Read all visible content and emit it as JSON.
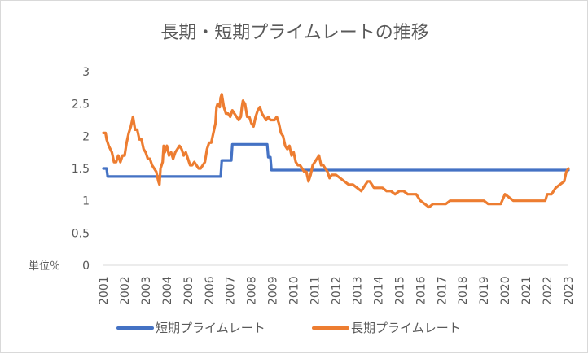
{
  "chart_data": {
    "type": "line",
    "title": "長期・短期プライムレートの推移",
    "ylabel": "単位％",
    "ylim": [
      0,
      3
    ],
    "y_ticks": [
      "0",
      "0.5",
      "1",
      "1.5",
      "2",
      "2.5",
      "3"
    ],
    "x_range": [
      2001,
      2023
    ],
    "x_ticks": [
      "2001",
      "2002",
      "2003",
      "2004",
      "2005",
      "2006",
      "2007",
      "2008",
      "2009",
      "2010",
      "2011",
      "2012",
      "2013",
      "2014",
      "2015",
      "2016",
      "2017",
      "2018",
      "2019",
      "2020",
      "2021",
      "2022",
      "2023"
    ],
    "grid": false,
    "legend_position": "bottom",
    "series": [
      {
        "name": "短期プライムレート",
        "color": "#4472C4",
        "points": [
          [
            2001.0,
            1.5
          ],
          [
            2001.15,
            1.5
          ],
          [
            2001.2,
            1.375
          ],
          [
            2006.55,
            1.375
          ],
          [
            2006.6,
            1.625
          ],
          [
            2007.05,
            1.625
          ],
          [
            2007.1,
            1.875
          ],
          [
            2008.75,
            1.875
          ],
          [
            2008.8,
            1.675
          ],
          [
            2008.9,
            1.675
          ],
          [
            2008.95,
            1.475
          ],
          [
            2023.0,
            1.475
          ]
        ]
      },
      {
        "name": "長期プライムレート",
        "color": "#ED7D31",
        "points": [
          [
            2001.0,
            2.05
          ],
          [
            2001.1,
            2.05
          ],
          [
            2001.15,
            1.95
          ],
          [
            2001.25,
            1.85
          ],
          [
            2001.4,
            1.75
          ],
          [
            2001.5,
            1.6
          ],
          [
            2001.6,
            1.6
          ],
          [
            2001.7,
            1.7
          ],
          [
            2001.8,
            1.6
          ],
          [
            2001.9,
            1.7
          ],
          [
            2002.0,
            1.7
          ],
          [
            2002.1,
            1.9
          ],
          [
            2002.2,
            2.05
          ],
          [
            2002.3,
            2.15
          ],
          [
            2002.4,
            2.3
          ],
          [
            2002.5,
            2.1
          ],
          [
            2002.6,
            2.1
          ],
          [
            2002.7,
            1.95
          ],
          [
            2002.8,
            1.95
          ],
          [
            2002.9,
            1.8
          ],
          [
            2003.0,
            1.75
          ],
          [
            2003.1,
            1.65
          ],
          [
            2003.2,
            1.65
          ],
          [
            2003.3,
            1.55
          ],
          [
            2003.4,
            1.5
          ],
          [
            2003.5,
            1.45
          ],
          [
            2003.6,
            1.3
          ],
          [
            2003.65,
            1.25
          ],
          [
            2003.7,
            1.5
          ],
          [
            2003.8,
            1.6
          ],
          [
            2003.85,
            1.85
          ],
          [
            2003.9,
            1.75
          ],
          [
            2004.0,
            1.85
          ],
          [
            2004.1,
            1.7
          ],
          [
            2004.2,
            1.75
          ],
          [
            2004.3,
            1.65
          ],
          [
            2004.4,
            1.75
          ],
          [
            2004.5,
            1.8
          ],
          [
            2004.6,
            1.85
          ],
          [
            2004.7,
            1.8
          ],
          [
            2004.8,
            1.7
          ],
          [
            2004.9,
            1.75
          ],
          [
            2005.0,
            1.65
          ],
          [
            2005.1,
            1.55
          ],
          [
            2005.2,
            1.55
          ],
          [
            2005.3,
            1.6
          ],
          [
            2005.4,
            1.55
          ],
          [
            2005.5,
            1.5
          ],
          [
            2005.6,
            1.5
          ],
          [
            2005.7,
            1.55
          ],
          [
            2005.8,
            1.6
          ],
          [
            2005.9,
            1.8
          ],
          [
            2006.0,
            1.9
          ],
          [
            2006.1,
            1.9
          ],
          [
            2006.2,
            2.05
          ],
          [
            2006.3,
            2.2
          ],
          [
            2006.35,
            2.45
          ],
          [
            2006.4,
            2.5
          ],
          [
            2006.5,
            2.45
          ],
          [
            2006.55,
            2.6
          ],
          [
            2006.6,
            2.65
          ],
          [
            2006.7,
            2.45
          ],
          [
            2006.8,
            2.35
          ],
          [
            2006.9,
            2.35
          ],
          [
            2007.0,
            2.3
          ],
          [
            2007.1,
            2.4
          ],
          [
            2007.2,
            2.35
          ],
          [
            2007.3,
            2.3
          ],
          [
            2007.4,
            2.25
          ],
          [
            2007.5,
            2.3
          ],
          [
            2007.55,
            2.45
          ],
          [
            2007.6,
            2.55
          ],
          [
            2007.7,
            2.5
          ],
          [
            2007.8,
            2.3
          ],
          [
            2007.9,
            2.3
          ],
          [
            2008.0,
            2.2
          ],
          [
            2008.1,
            2.15
          ],
          [
            2008.2,
            2.3
          ],
          [
            2008.3,
            2.4
          ],
          [
            2008.4,
            2.45
          ],
          [
            2008.5,
            2.35
          ],
          [
            2008.6,
            2.3
          ],
          [
            2008.7,
            2.25
          ],
          [
            2008.8,
            2.3
          ],
          [
            2008.9,
            2.25
          ],
          [
            2009.0,
            2.25
          ],
          [
            2009.1,
            2.25
          ],
          [
            2009.2,
            2.3
          ],
          [
            2009.3,
            2.2
          ],
          [
            2009.4,
            2.05
          ],
          [
            2009.5,
            2.0
          ],
          [
            2009.6,
            1.85
          ],
          [
            2009.7,
            1.8
          ],
          [
            2009.8,
            1.85
          ],
          [
            2009.9,
            1.7
          ],
          [
            2010.0,
            1.75
          ],
          [
            2010.1,
            1.6
          ],
          [
            2010.2,
            1.55
          ],
          [
            2010.3,
            1.55
          ],
          [
            2010.4,
            1.5
          ],
          [
            2010.5,
            1.45
          ],
          [
            2010.6,
            1.45
          ],
          [
            2010.7,
            1.3
          ],
          [
            2010.8,
            1.4
          ],
          [
            2010.9,
            1.55
          ],
          [
            2011.0,
            1.6
          ],
          [
            2011.1,
            1.65
          ],
          [
            2011.2,
            1.7
          ],
          [
            2011.3,
            1.55
          ],
          [
            2011.4,
            1.55
          ],
          [
            2011.5,
            1.5
          ],
          [
            2011.6,
            1.45
          ],
          [
            2011.7,
            1.35
          ],
          [
            2011.8,
            1.4
          ],
          [
            2012.0,
            1.4
          ],
          [
            2012.2,
            1.35
          ],
          [
            2012.4,
            1.3
          ],
          [
            2012.6,
            1.25
          ],
          [
            2012.8,
            1.25
          ],
          [
            2013.0,
            1.2
          ],
          [
            2013.2,
            1.15
          ],
          [
            2013.3,
            1.2
          ],
          [
            2013.4,
            1.25
          ],
          [
            2013.5,
            1.3
          ],
          [
            2013.6,
            1.3
          ],
          [
            2013.7,
            1.25
          ],
          [
            2013.8,
            1.2
          ],
          [
            2014.0,
            1.2
          ],
          [
            2014.2,
            1.2
          ],
          [
            2014.4,
            1.15
          ],
          [
            2014.6,
            1.15
          ],
          [
            2014.8,
            1.1
          ],
          [
            2015.0,
            1.15
          ],
          [
            2015.2,
            1.15
          ],
          [
            2015.4,
            1.1
          ],
          [
            2015.6,
            1.1
          ],
          [
            2015.8,
            1.1
          ],
          [
            2016.0,
            1.0
          ],
          [
            2016.2,
            0.95
          ],
          [
            2016.4,
            0.9
          ],
          [
            2016.6,
            0.95
          ],
          [
            2016.8,
            0.95
          ],
          [
            2017.0,
            0.95
          ],
          [
            2017.2,
            0.95
          ],
          [
            2017.4,
            1.0
          ],
          [
            2017.6,
            1.0
          ],
          [
            2017.8,
            1.0
          ],
          [
            2018.0,
            1.0
          ],
          [
            2018.5,
            1.0
          ],
          [
            2019.0,
            1.0
          ],
          [
            2019.2,
            0.95
          ],
          [
            2019.5,
            0.95
          ],
          [
            2019.8,
            0.95
          ],
          [
            2020.0,
            1.1
          ],
          [
            2020.2,
            1.05
          ],
          [
            2020.4,
            1.0
          ],
          [
            2020.6,
            1.0
          ],
          [
            2021.0,
            1.0
          ],
          [
            2021.5,
            1.0
          ],
          [
            2021.9,
            1.0
          ],
          [
            2022.0,
            1.1
          ],
          [
            2022.2,
            1.1
          ],
          [
            2022.4,
            1.2
          ],
          [
            2022.6,
            1.25
          ],
          [
            2022.8,
            1.3
          ],
          [
            2022.9,
            1.45
          ],
          [
            2023.0,
            1.5
          ]
        ]
      }
    ]
  }
}
